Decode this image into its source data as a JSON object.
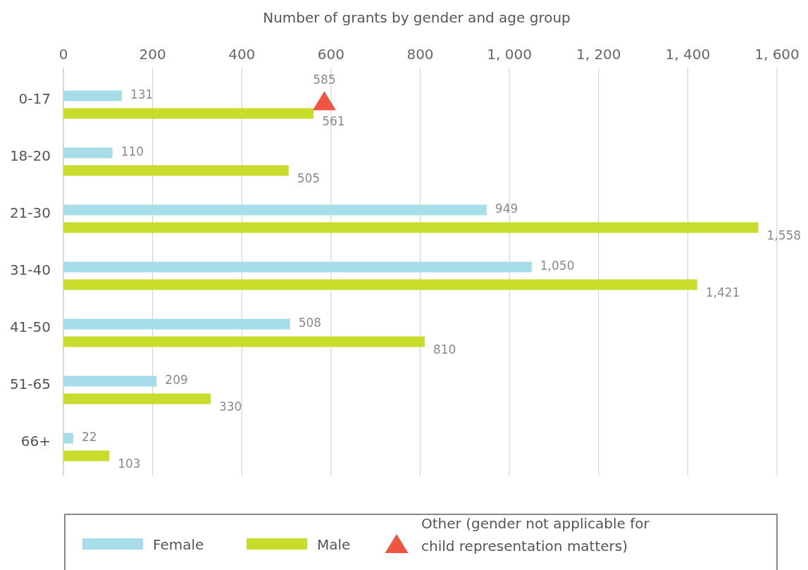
{
  "chart_data": {
    "type": "bar",
    "orientation": "horizontal",
    "xlabel": "Number of grants by gender and age group",
    "categories": [
      "0-17",
      "18-20",
      "21-30",
      "31-40",
      "41-50",
      "51-65",
      "66+"
    ],
    "series": [
      {
        "name": "Female",
        "color": "#a6dde9",
        "values": [
          131,
          110,
          949,
          1050,
          508,
          209,
          22
        ],
        "value_labels": [
          "131",
          "110",
          "949",
          "1,050",
          "508",
          "209",
          "22"
        ]
      },
      {
        "name": "Male",
        "color": "#c8dc2b",
        "values": [
          561,
          505,
          1558,
          1421,
          810,
          330,
          103
        ],
        "value_labels": [
          "561",
          "505",
          "1,558",
          "1,421",
          "810",
          "330",
          "103"
        ]
      },
      {
        "name": "Other (gender not applicable for child representation matters)",
        "type": "scatter",
        "marker": "triangle",
        "color": "#ef5540",
        "values": [
          585,
          null,
          null,
          null,
          null,
          null,
          null
        ],
        "value_labels": [
          "585",
          null,
          null,
          null,
          null,
          null,
          null
        ]
      }
    ],
    "xlim": [
      0,
      1600
    ],
    "xticks": [
      0,
      200,
      400,
      600,
      800,
      {
        "value": 1000,
        "label": "1, 000"
      },
      {
        "value": 1200,
        "label": "1, 200"
      },
      {
        "value": 1400,
        "label": "1, 400"
      },
      {
        "value": 1600,
        "label": "1, 600"
      }
    ],
    "grid": "x",
    "legend": "bottom"
  }
}
